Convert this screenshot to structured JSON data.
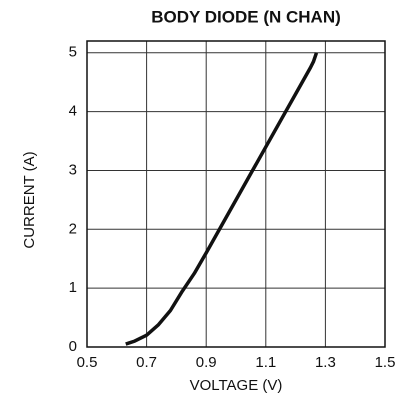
{
  "chart_data": {
    "type": "line",
    "title": "BODY DIODE (N CHAN)",
    "x_label": "VOLTAGE (V)",
    "y_label": "CURRENT (A)",
    "x": [
      0.63,
      0.66,
      0.7,
      0.74,
      0.78,
      0.82,
      0.86,
      0.9,
      0.95,
      1.0,
      1.05,
      1.1,
      1.15,
      1.2,
      1.25,
      1.26,
      1.27
    ],
    "series": [
      {
        "name": "Body diode",
        "color": "#111111",
        "values": [
          0.05,
          0.1,
          0.2,
          0.38,
          0.62,
          0.95,
          1.25,
          1.6,
          2.05,
          2.5,
          2.95,
          3.4,
          3.85,
          4.3,
          4.75,
          4.85,
          5.0
        ]
      }
    ],
    "xlim": [
      0.5,
      1.5
    ],
    "xticks": [
      0.5,
      0.7,
      0.9,
      1.1,
      1.3,
      1.5
    ],
    "ylim": [
      0,
      5.2
    ],
    "yticks": [
      0,
      1,
      2,
      3,
      4,
      5
    ],
    "grid": true
  }
}
